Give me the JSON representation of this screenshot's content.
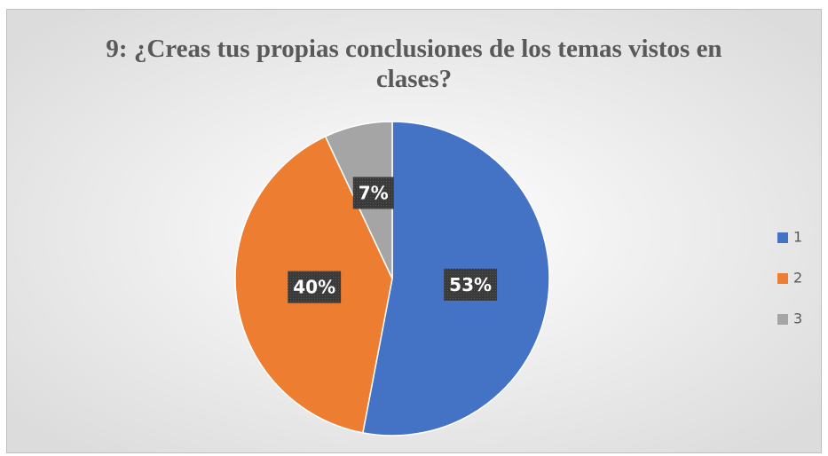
{
  "chart_data": {
    "type": "pie",
    "title": "9: ¿Creas tus propias  conclusiones de los temas vistos en clases?",
    "categories": [
      "1",
      "2",
      "3"
    ],
    "values": [
      53,
      40,
      7
    ],
    "value_labels": [
      "53%",
      "40%",
      "7%"
    ],
    "colors": [
      "#4472c4",
      "#ed7d31",
      "#a5a5a5"
    ],
    "legend": "right"
  }
}
